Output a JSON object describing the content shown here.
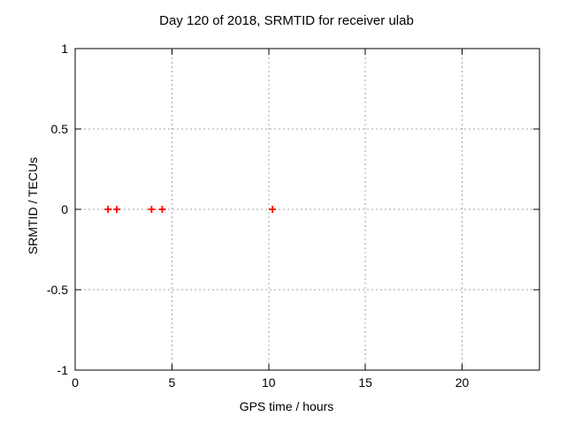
{
  "chart_data": {
    "type": "scatter",
    "title": "Day 120 of 2018, SRMTID for receiver ulab",
    "xlabel": "GPS time / hours",
    "ylabel": "SRMTID / TECUs",
    "xlim": [
      0,
      24
    ],
    "ylim": [
      -1,
      1
    ],
    "xticks": [
      0,
      5,
      10,
      15,
      20
    ],
    "yticks": [
      1,
      0.5,
      0,
      -0.5,
      -1
    ],
    "grid": true,
    "legend": false,
    "series": [
      {
        "name": "SRMTID",
        "marker": "plus",
        "color": "#ff0000",
        "points": [
          [
            1.7,
            0
          ],
          [
            2.15,
            0
          ],
          [
            3.95,
            0
          ],
          [
            4.5,
            0
          ],
          [
            10.2,
            0
          ]
        ]
      }
    ],
    "colors": {
      "background": "#ffffff",
      "border": "#000000",
      "grid": "#a6a6a6",
      "text": "#000000"
    }
  }
}
